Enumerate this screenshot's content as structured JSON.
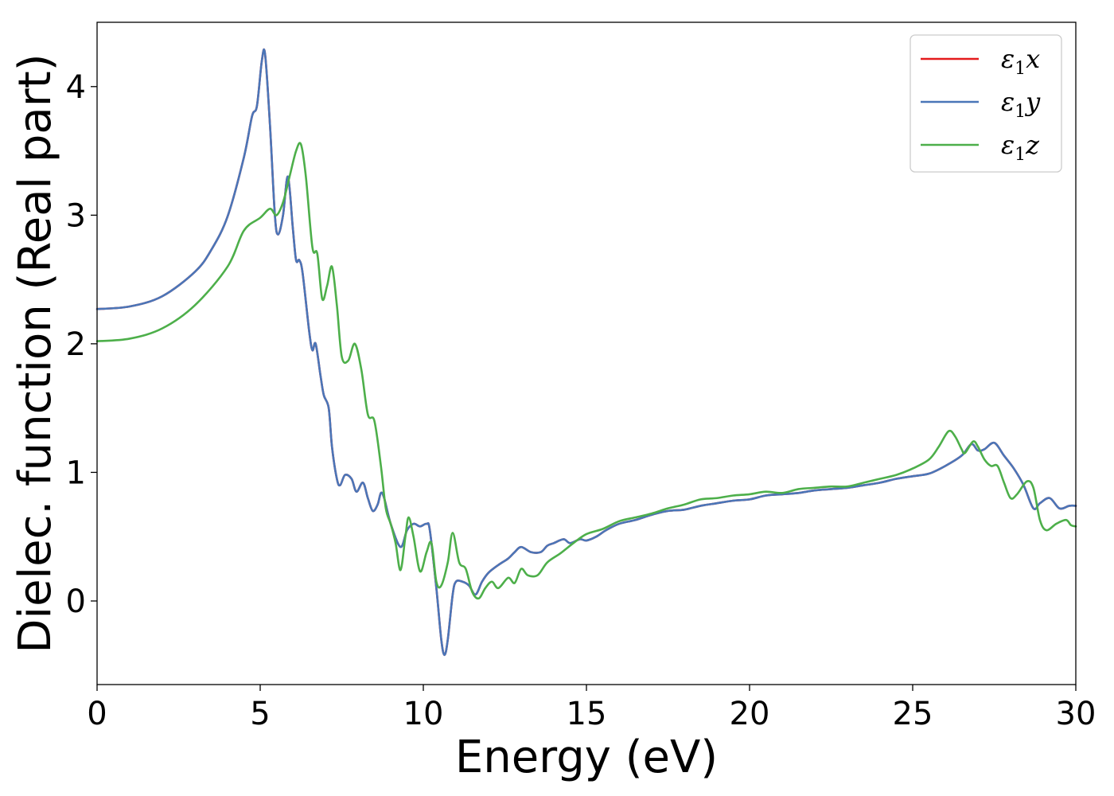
{
  "chart_data": {
    "type": "line",
    "xlabel": "Energy (eV)",
    "ylabel": "Dielec. function (Real part)",
    "xlim": [
      0,
      30
    ],
    "ylim": [
      -0.65,
      4.5
    ],
    "x_ticks": [
      0,
      5,
      10,
      15,
      20,
      25,
      30
    ],
    "y_ticks": [
      0,
      1,
      2,
      3,
      4
    ],
    "grid": false,
    "legend_placement": "top-right",
    "series": [
      {
        "name": "ε₁x",
        "legend_base": "ε",
        "legend_sub": "1",
        "legend_suffix": "x",
        "color": "#e41a1c",
        "points": [
          [
            0,
            2.27
          ],
          [
            1,
            2.29
          ],
          [
            2,
            2.37
          ],
          [
            3,
            2.56
          ],
          [
            3.5,
            2.73
          ],
          [
            4,
            2.99
          ],
          [
            4.5,
            3.45
          ],
          [
            4.75,
            3.77
          ],
          [
            4.9,
            3.85
          ],
          [
            5.05,
            4.2
          ],
          [
            5.15,
            4.25
          ],
          [
            5.3,
            3.7
          ],
          [
            5.45,
            3.0
          ],
          [
            5.55,
            2.85
          ],
          [
            5.7,
            3.0
          ],
          [
            5.85,
            3.3
          ],
          [
            6.0,
            2.9
          ],
          [
            6.1,
            2.65
          ],
          [
            6.2,
            2.65
          ],
          [
            6.3,
            2.55
          ],
          [
            6.5,
            2.1
          ],
          [
            6.6,
            1.95
          ],
          [
            6.7,
            2.0
          ],
          [
            6.85,
            1.75
          ],
          [
            6.95,
            1.6
          ],
          [
            7.1,
            1.5
          ],
          [
            7.2,
            1.2
          ],
          [
            7.35,
            0.95
          ],
          [
            7.45,
            0.9
          ],
          [
            7.6,
            0.98
          ],
          [
            7.8,
            0.95
          ],
          [
            7.95,
            0.85
          ],
          [
            8.15,
            0.92
          ],
          [
            8.3,
            0.8
          ],
          [
            8.45,
            0.7
          ],
          [
            8.6,
            0.75
          ],
          [
            8.7,
            0.84
          ],
          [
            8.8,
            0.8
          ],
          [
            9.0,
            0.6
          ],
          [
            9.3,
            0.42
          ],
          [
            9.5,
            0.55
          ],
          [
            9.7,
            0.6
          ],
          [
            9.9,
            0.58
          ],
          [
            10.1,
            0.6
          ],
          [
            10.2,
            0.55
          ],
          [
            10.4,
            0.1
          ],
          [
            10.55,
            -0.3
          ],
          [
            10.65,
            -0.42
          ],
          [
            10.75,
            -0.3
          ],
          [
            10.9,
            0.05
          ],
          [
            11.0,
            0.15
          ],
          [
            11.2,
            0.15
          ],
          [
            11.4,
            0.12
          ],
          [
            11.6,
            0.05
          ],
          [
            11.8,
            0.15
          ],
          [
            12.0,
            0.22
          ],
          [
            12.3,
            0.28
          ],
          [
            12.6,
            0.33
          ],
          [
            12.8,
            0.38
          ],
          [
            13.0,
            0.42
          ],
          [
            13.3,
            0.38
          ],
          [
            13.6,
            0.38
          ],
          [
            13.8,
            0.43
          ],
          [
            14.0,
            0.45
          ],
          [
            14.3,
            0.48
          ],
          [
            14.5,
            0.45
          ],
          [
            14.8,
            0.48
          ],
          [
            15.0,
            0.47
          ],
          [
            15.3,
            0.5
          ],
          [
            15.6,
            0.55
          ],
          [
            16.0,
            0.6
          ],
          [
            16.5,
            0.63
          ],
          [
            17.0,
            0.67
          ],
          [
            17.5,
            0.7
          ],
          [
            18.0,
            0.71
          ],
          [
            18.5,
            0.74
          ],
          [
            19.0,
            0.76
          ],
          [
            19.5,
            0.78
          ],
          [
            20.0,
            0.79
          ],
          [
            20.5,
            0.82
          ],
          [
            21.0,
            0.83
          ],
          [
            21.5,
            0.84
          ],
          [
            22.0,
            0.86
          ],
          [
            22.5,
            0.87
          ],
          [
            23.0,
            0.88
          ],
          [
            23.5,
            0.9
          ],
          [
            24.0,
            0.92
          ],
          [
            24.5,
            0.95
          ],
          [
            25.0,
            0.97
          ],
          [
            25.5,
            0.99
          ],
          [
            26.0,
            1.05
          ],
          [
            26.5,
            1.13
          ],
          [
            26.8,
            1.22
          ],
          [
            27.0,
            1.17
          ],
          [
            27.2,
            1.18
          ],
          [
            27.5,
            1.23
          ],
          [
            27.8,
            1.13
          ],
          [
            28.1,
            1.03
          ],
          [
            28.4,
            0.9
          ],
          [
            28.7,
            0.72
          ],
          [
            28.9,
            0.76
          ],
          [
            29.2,
            0.8
          ],
          [
            29.5,
            0.72
          ],
          [
            29.8,
            0.74
          ],
          [
            30.0,
            0.74
          ]
        ]
      },
      {
        "name": "ε₁y",
        "legend_base": "ε",
        "legend_sub": "1",
        "legend_suffix": "y",
        "color": "#4a76b8",
        "points": [
          [
            0,
            2.27
          ],
          [
            1,
            2.29
          ],
          [
            2,
            2.37
          ],
          [
            3,
            2.56
          ],
          [
            3.5,
            2.73
          ],
          [
            4,
            2.99
          ],
          [
            4.5,
            3.45
          ],
          [
            4.75,
            3.77
          ],
          [
            4.9,
            3.85
          ],
          [
            5.05,
            4.2
          ],
          [
            5.15,
            4.25
          ],
          [
            5.3,
            3.7
          ],
          [
            5.45,
            3.0
          ],
          [
            5.55,
            2.85
          ],
          [
            5.7,
            3.0
          ],
          [
            5.85,
            3.3
          ],
          [
            6.0,
            2.9
          ],
          [
            6.1,
            2.65
          ],
          [
            6.2,
            2.65
          ],
          [
            6.3,
            2.55
          ],
          [
            6.5,
            2.1
          ],
          [
            6.6,
            1.95
          ],
          [
            6.7,
            2.0
          ],
          [
            6.85,
            1.75
          ],
          [
            6.95,
            1.6
          ],
          [
            7.1,
            1.5
          ],
          [
            7.2,
            1.2
          ],
          [
            7.35,
            0.95
          ],
          [
            7.45,
            0.9
          ],
          [
            7.6,
            0.98
          ],
          [
            7.8,
            0.95
          ],
          [
            7.95,
            0.85
          ],
          [
            8.15,
            0.92
          ],
          [
            8.3,
            0.8
          ],
          [
            8.45,
            0.7
          ],
          [
            8.6,
            0.75
          ],
          [
            8.7,
            0.84
          ],
          [
            8.8,
            0.8
          ],
          [
            9.0,
            0.6
          ],
          [
            9.3,
            0.42
          ],
          [
            9.5,
            0.55
          ],
          [
            9.7,
            0.6
          ],
          [
            9.9,
            0.58
          ],
          [
            10.1,
            0.6
          ],
          [
            10.2,
            0.55
          ],
          [
            10.4,
            0.1
          ],
          [
            10.55,
            -0.3
          ],
          [
            10.65,
            -0.42
          ],
          [
            10.75,
            -0.3
          ],
          [
            10.9,
            0.05
          ],
          [
            11.0,
            0.15
          ],
          [
            11.2,
            0.15
          ],
          [
            11.4,
            0.12
          ],
          [
            11.6,
            0.05
          ],
          [
            11.8,
            0.15
          ],
          [
            12.0,
            0.22
          ],
          [
            12.3,
            0.28
          ],
          [
            12.6,
            0.33
          ],
          [
            12.8,
            0.38
          ],
          [
            13.0,
            0.42
          ],
          [
            13.3,
            0.38
          ],
          [
            13.6,
            0.38
          ],
          [
            13.8,
            0.43
          ],
          [
            14.0,
            0.45
          ],
          [
            14.3,
            0.48
          ],
          [
            14.5,
            0.45
          ],
          [
            14.8,
            0.48
          ],
          [
            15.0,
            0.47
          ],
          [
            15.3,
            0.5
          ],
          [
            15.6,
            0.55
          ],
          [
            16.0,
            0.6
          ],
          [
            16.5,
            0.63
          ],
          [
            17.0,
            0.67
          ],
          [
            17.5,
            0.7
          ],
          [
            18.0,
            0.71
          ],
          [
            18.5,
            0.74
          ],
          [
            19.0,
            0.76
          ],
          [
            19.5,
            0.78
          ],
          [
            20.0,
            0.79
          ],
          [
            20.5,
            0.82
          ],
          [
            21.0,
            0.83
          ],
          [
            21.5,
            0.84
          ],
          [
            22.0,
            0.86
          ],
          [
            22.5,
            0.87
          ],
          [
            23.0,
            0.88
          ],
          [
            23.5,
            0.9
          ],
          [
            24.0,
            0.92
          ],
          [
            24.5,
            0.95
          ],
          [
            25.0,
            0.97
          ],
          [
            25.5,
            0.99
          ],
          [
            26.0,
            1.05
          ],
          [
            26.5,
            1.13
          ],
          [
            26.8,
            1.22
          ],
          [
            27.0,
            1.17
          ],
          [
            27.2,
            1.18
          ],
          [
            27.5,
            1.23
          ],
          [
            27.8,
            1.13
          ],
          [
            28.1,
            1.03
          ],
          [
            28.4,
            0.9
          ],
          [
            28.7,
            0.72
          ],
          [
            28.9,
            0.76
          ],
          [
            29.2,
            0.8
          ],
          [
            29.5,
            0.72
          ],
          [
            29.8,
            0.74
          ],
          [
            30.0,
            0.74
          ]
        ]
      },
      {
        "name": "ε₁z",
        "legend_base": "ε",
        "legend_sub": "1",
        "legend_suffix": "z",
        "color": "#4daf4a",
        "points": [
          [
            0,
            2.02
          ],
          [
            1,
            2.04
          ],
          [
            2,
            2.12
          ],
          [
            3,
            2.3
          ],
          [
            4,
            2.6
          ],
          [
            4.5,
            2.88
          ],
          [
            5.0,
            2.98
          ],
          [
            5.3,
            3.05
          ],
          [
            5.5,
            3.0
          ],
          [
            5.7,
            3.1
          ],
          [
            5.9,
            3.3
          ],
          [
            6.1,
            3.5
          ],
          [
            6.25,
            3.55
          ],
          [
            6.4,
            3.3
          ],
          [
            6.6,
            2.75
          ],
          [
            6.75,
            2.7
          ],
          [
            6.9,
            2.35
          ],
          [
            7.05,
            2.45
          ],
          [
            7.2,
            2.6
          ],
          [
            7.35,
            2.3
          ],
          [
            7.5,
            1.9
          ],
          [
            7.7,
            1.87
          ],
          [
            7.9,
            2.0
          ],
          [
            8.1,
            1.8
          ],
          [
            8.3,
            1.45
          ],
          [
            8.5,
            1.4
          ],
          [
            8.7,
            1.05
          ],
          [
            8.85,
            0.72
          ],
          [
            9.0,
            0.6
          ],
          [
            9.15,
            0.45
          ],
          [
            9.3,
            0.24
          ],
          [
            9.45,
            0.5
          ],
          [
            9.55,
            0.65
          ],
          [
            9.7,
            0.5
          ],
          [
            9.9,
            0.23
          ],
          [
            10.1,
            0.38
          ],
          [
            10.25,
            0.45
          ],
          [
            10.4,
            0.15
          ],
          [
            10.55,
            0.12
          ],
          [
            10.75,
            0.3
          ],
          [
            10.9,
            0.53
          ],
          [
            11.1,
            0.3
          ],
          [
            11.3,
            0.25
          ],
          [
            11.5,
            0.07
          ],
          [
            11.7,
            0.02
          ],
          [
            11.9,
            0.1
          ],
          [
            12.1,
            0.15
          ],
          [
            12.3,
            0.1
          ],
          [
            12.6,
            0.18
          ],
          [
            12.8,
            0.14
          ],
          [
            13.0,
            0.25
          ],
          [
            13.2,
            0.2
          ],
          [
            13.5,
            0.2
          ],
          [
            13.8,
            0.3
          ],
          [
            14.2,
            0.37
          ],
          [
            14.6,
            0.45
          ],
          [
            15.0,
            0.52
          ],
          [
            15.5,
            0.56
          ],
          [
            16.0,
            0.62
          ],
          [
            16.5,
            0.65
          ],
          [
            17.0,
            0.68
          ],
          [
            17.5,
            0.72
          ],
          [
            18.0,
            0.75
          ],
          [
            18.5,
            0.79
          ],
          [
            19.0,
            0.8
          ],
          [
            19.5,
            0.82
          ],
          [
            20.0,
            0.83
          ],
          [
            20.5,
            0.85
          ],
          [
            21.0,
            0.84
          ],
          [
            21.5,
            0.87
          ],
          [
            22.0,
            0.88
          ],
          [
            22.5,
            0.89
          ],
          [
            23.0,
            0.89
          ],
          [
            23.5,
            0.92
          ],
          [
            24.0,
            0.95
          ],
          [
            24.5,
            0.98
          ],
          [
            25.0,
            1.03
          ],
          [
            25.5,
            1.1
          ],
          [
            25.8,
            1.2
          ],
          [
            26.1,
            1.32
          ],
          [
            26.3,
            1.28
          ],
          [
            26.5,
            1.18
          ],
          [
            26.6,
            1.15
          ],
          [
            26.85,
            1.24
          ],
          [
            27.0,
            1.2
          ],
          [
            27.2,
            1.1
          ],
          [
            27.4,
            1.05
          ],
          [
            27.6,
            1.05
          ],
          [
            27.8,
            0.92
          ],
          [
            28.0,
            0.8
          ],
          [
            28.2,
            0.83
          ],
          [
            28.5,
            0.93
          ],
          [
            28.7,
            0.88
          ],
          [
            28.9,
            0.63
          ],
          [
            29.1,
            0.55
          ],
          [
            29.4,
            0.6
          ],
          [
            29.7,
            0.63
          ],
          [
            29.85,
            0.59
          ],
          [
            30.0,
            0.58
          ]
        ]
      }
    ]
  }
}
